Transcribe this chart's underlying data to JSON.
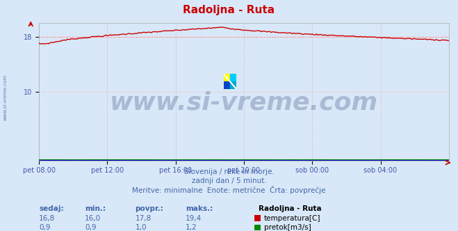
{
  "title": "Radoljna - Ruta",
  "title_color": "#cc0000",
  "bg_color": "#d8e8f8",
  "plot_bg_color": "#d8e8f8",
  "grid_color": "#ffaaaa",
  "grid_vcolor": "#ddaaaa",
  "avg_line_value": 18.0,
  "avg_line_color": "#ff8888",
  "temp_color": "#cc0000",
  "flow_color": "#008800",
  "height_color": "#0000cc",
  "watermark_text": "www.si-vreme.com",
  "watermark_color": "#334477",
  "watermark_alpha": 0.28,
  "watermark_fontsize": 26,
  "x_ticks_labels": [
    "pet 08:00",
    "pet 12:00",
    "pet 16:00",
    "pet 20:00",
    "sob 00:00",
    "sob 04:00"
  ],
  "x_ticks_positions": [
    0,
    48,
    96,
    144,
    192,
    240
  ],
  "total_points": 289,
  "yticks": [
    10,
    18
  ],
  "tick_color": "#4455aa",
  "subtitle_lines": [
    "Slovenija / reke in morje.",
    "zadnji dan / 5 minut.",
    "Meritve: minimalne  Enote: metrične  Črta: povprečje"
  ],
  "subtitle_color": "#4466aa",
  "subtitle_fontsize": 8,
  "table_headers": [
    "sedaj:",
    "min.:",
    "povpr.:",
    "maks.:"
  ],
  "table_header_color": "#4466aa",
  "table_bold_header": "Radoljna - Ruta",
  "table_rows": [
    {
      "values": [
        "16,8",
        "16,0",
        "17,8",
        "19,4"
      ],
      "color": "#cc0000",
      "label": "temperatura[C]"
    },
    {
      "values": [
        "0,9",
        "0,9",
        "1,0",
        "1,2"
      ],
      "color": "#008800",
      "label": "pretok[m3/s]"
    }
  ],
  "left_label": "www.si-vreme.com",
  "left_label_color": "#4466aa",
  "logo_colors": [
    "#ffff00",
    "#00cccc",
    "#0000cc",
    "#00ffff"
  ]
}
